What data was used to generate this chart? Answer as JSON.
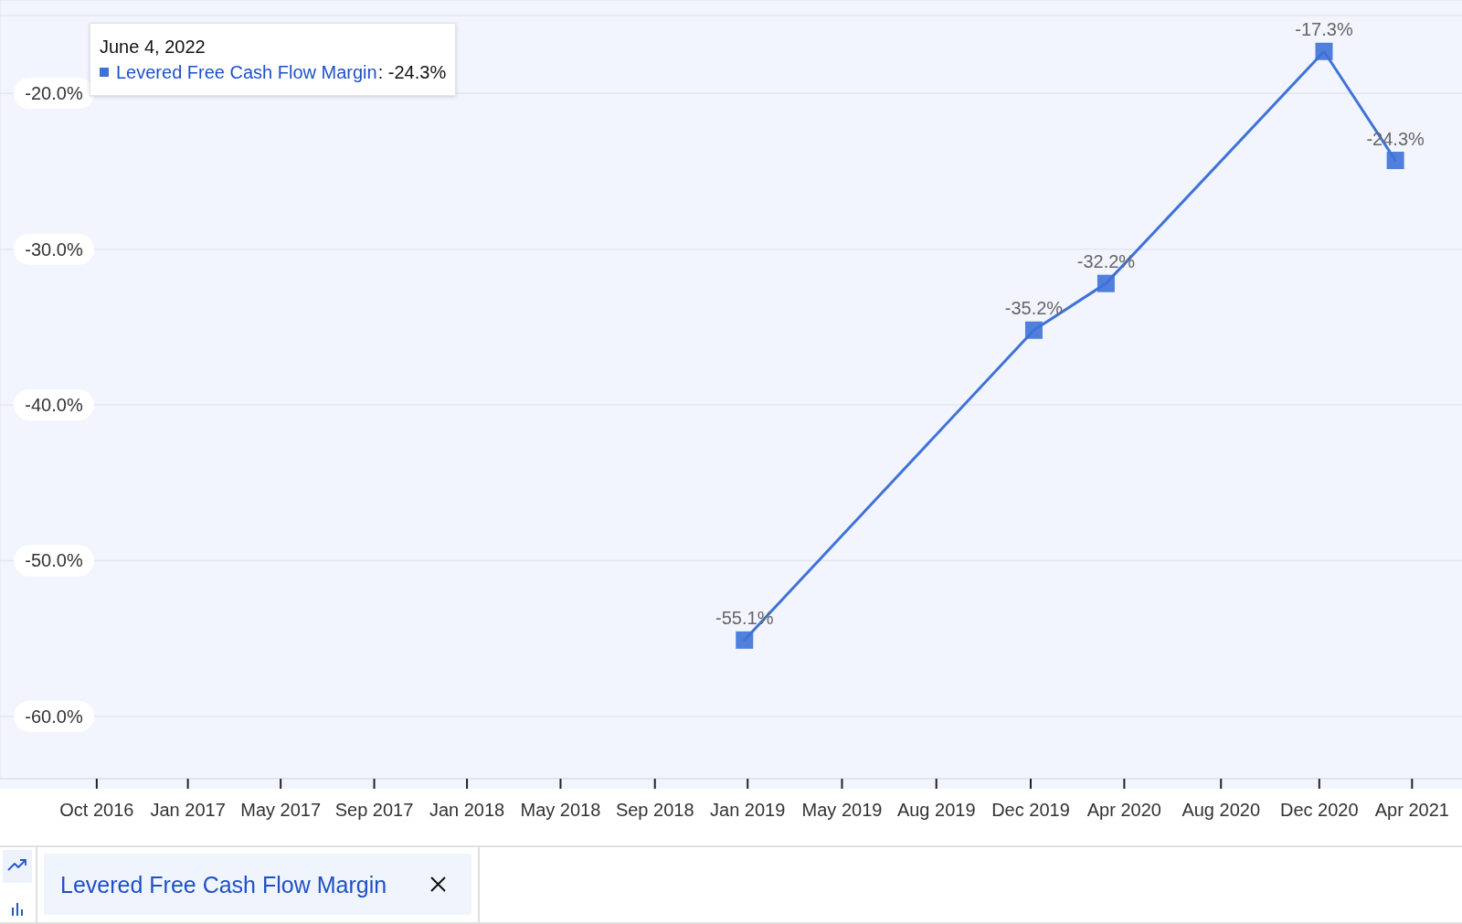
{
  "chart_data": {
    "type": "line",
    "x": [
      "2018-12-31",
      "2019-12-31",
      "2020-03-31",
      "2020-12-31",
      "2021-03-31"
    ],
    "series": [
      {
        "name": "Levered Free Cash Flow Margin",
        "color": "#3f72d8",
        "values": [
          -55.1,
          -35.2,
          -32.2,
          -17.3,
          -24.3
        ],
        "value_labels": [
          "-55.1%",
          "-35.2%",
          "-32.2%",
          "-17.3%",
          "-24.3%"
        ]
      }
    ],
    "xlim": [
      "2016-06-05",
      "2021-06-23"
    ],
    "xticks": [
      {
        "value": "2016-10-05",
        "label": "Oct 2016"
      },
      {
        "value": "2017-01-28",
        "label": "Jan 2017"
      },
      {
        "value": "2017-05-25",
        "label": "May 2017"
      },
      {
        "value": "2017-09-20",
        "label": "Sep 2017"
      },
      {
        "value": "2018-01-15",
        "label": "Jan 2018"
      },
      {
        "value": "2018-05-13",
        "label": "May 2018"
      },
      {
        "value": "2018-09-09",
        "label": "Sep 2018"
      },
      {
        "value": "2019-01-04",
        "label": "Jan 2019"
      },
      {
        "value": "2019-05-03",
        "label": "May 2019"
      },
      {
        "value": "2019-08-30",
        "label": "Aug 2019"
      },
      {
        "value": "2019-12-27",
        "label": "Dec 2019"
      },
      {
        "value": "2020-04-23",
        "label": "Apr 2020"
      },
      {
        "value": "2020-08-23",
        "label": "Aug 2020"
      },
      {
        "value": "2020-12-25",
        "label": "Dec 2020"
      },
      {
        "value": "2021-04-21",
        "label": "Apr 2021"
      }
    ],
    "ylim": [
      -64,
      -14
    ],
    "yticks": [
      {
        "value": -15,
        "label": null
      },
      {
        "value": -20,
        "label": "-20.0%"
      },
      {
        "value": -30,
        "label": "-30.0%"
      },
      {
        "value": -40,
        "label": "-40.0%"
      },
      {
        "value": -50,
        "label": "-50.0%"
      },
      {
        "value": -60,
        "label": "-60.0%"
      }
    ],
    "grid": "y",
    "marker": "square",
    "line_style": "solid",
    "legend": "top left",
    "legend_title": "June 4, 2022",
    "annotations": [
      ": -24.3%"
    ]
  }
}
